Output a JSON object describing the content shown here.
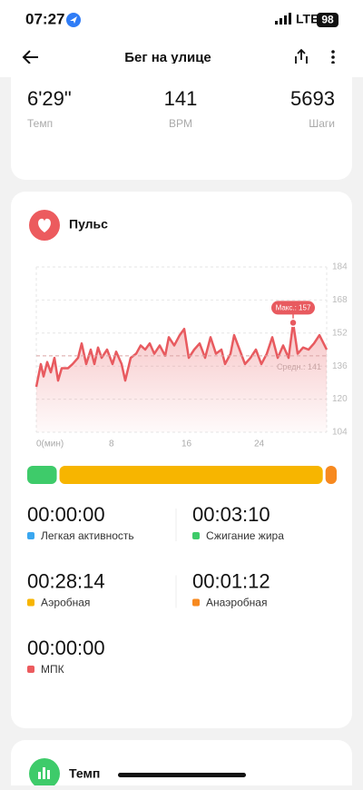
{
  "status_bar": {
    "time": "07:27",
    "network": "LTE",
    "battery": "98"
  },
  "header": {
    "title": "Бег на улице"
  },
  "summary": [
    {
      "value": "6'29\"",
      "label": "Темп"
    },
    {
      "value": "141",
      "label": "BPM"
    },
    {
      "value": "5693",
      "label": "Шаги"
    }
  ],
  "heart_rate_card": {
    "title": "Пульс"
  },
  "chart_data": {
    "type": "line",
    "x": [
      0,
      0.5,
      0.8,
      1.2,
      1.6,
      2,
      2.4,
      2.8,
      3.5,
      4,
      4.6,
      5,
      5.5,
      6,
      6.4,
      6.8,
      7.2,
      7.8,
      8.4,
      8.8,
      9.4,
      9.8,
      10.4,
      11,
      11.5,
      12,
      12.5,
      13,
      13.6,
      14.2,
      14.6,
      15.2,
      15.8,
      16.3,
      16.8,
      17.4,
      18,
      18.6,
      19.2,
      19.8,
      20.4,
      20.8,
      21.4,
      21.8,
      22.4,
      23,
      23.6,
      24.2,
      24.8,
      25.4,
      26,
      26.6,
      27.2,
      27.8,
      28.3,
      28.8,
      29.4,
      30,
      30.6,
      31.2,
      32
    ],
    "series": [
      {
        "color": "#e85a5f",
        "values": [
          126,
          137,
          131,
          138,
          133,
          140,
          129,
          135,
          135,
          137,
          140,
          147,
          137,
          144,
          137,
          145,
          140,
          144,
          137,
          143,
          137,
          129,
          140,
          142,
          146,
          144,
          147,
          142,
          146,
          141,
          150,
          146,
          151,
          154,
          140,
          144,
          147,
          140,
          150,
          142,
          144,
          137,
          142,
          151,
          144,
          137,
          140,
          144,
          137,
          142,
          150,
          140,
          146,
          140,
          157,
          142,
          145,
          144,
          147,
          151,
          144
        ]
      }
    ],
    "xlim": [
      0,
      32
    ],
    "xticks": [
      {
        "value": 0,
        "label": "0(мин)"
      },
      8,
      16,
      24
    ],
    "ylim": [
      104,
      184
    ],
    "yticks": [
      104,
      120,
      136,
      152,
      168,
      184
    ],
    "grid": true,
    "annotations": {
      "max_label": "Макс.: 157",
      "avg_label": "Средн.: 141",
      "avg_value": 141
    }
  },
  "zones": [
    {
      "time": "00:00:00",
      "name": "Легкая активность",
      "color": "#3aa7f0"
    },
    {
      "time": "00:03:10",
      "name": "Сжигание жира",
      "color": "#3ecb6a"
    },
    {
      "time": "00:28:14",
      "name": "Аэробная",
      "color": "#f7b500"
    },
    {
      "time": "00:01:12",
      "name": "Анаэробная",
      "color": "#f7891f"
    },
    {
      "time": "00:00:00",
      "name": "МПК",
      "color": "#ec5b5e"
    }
  ],
  "next_card": {
    "title": "Темп"
  }
}
